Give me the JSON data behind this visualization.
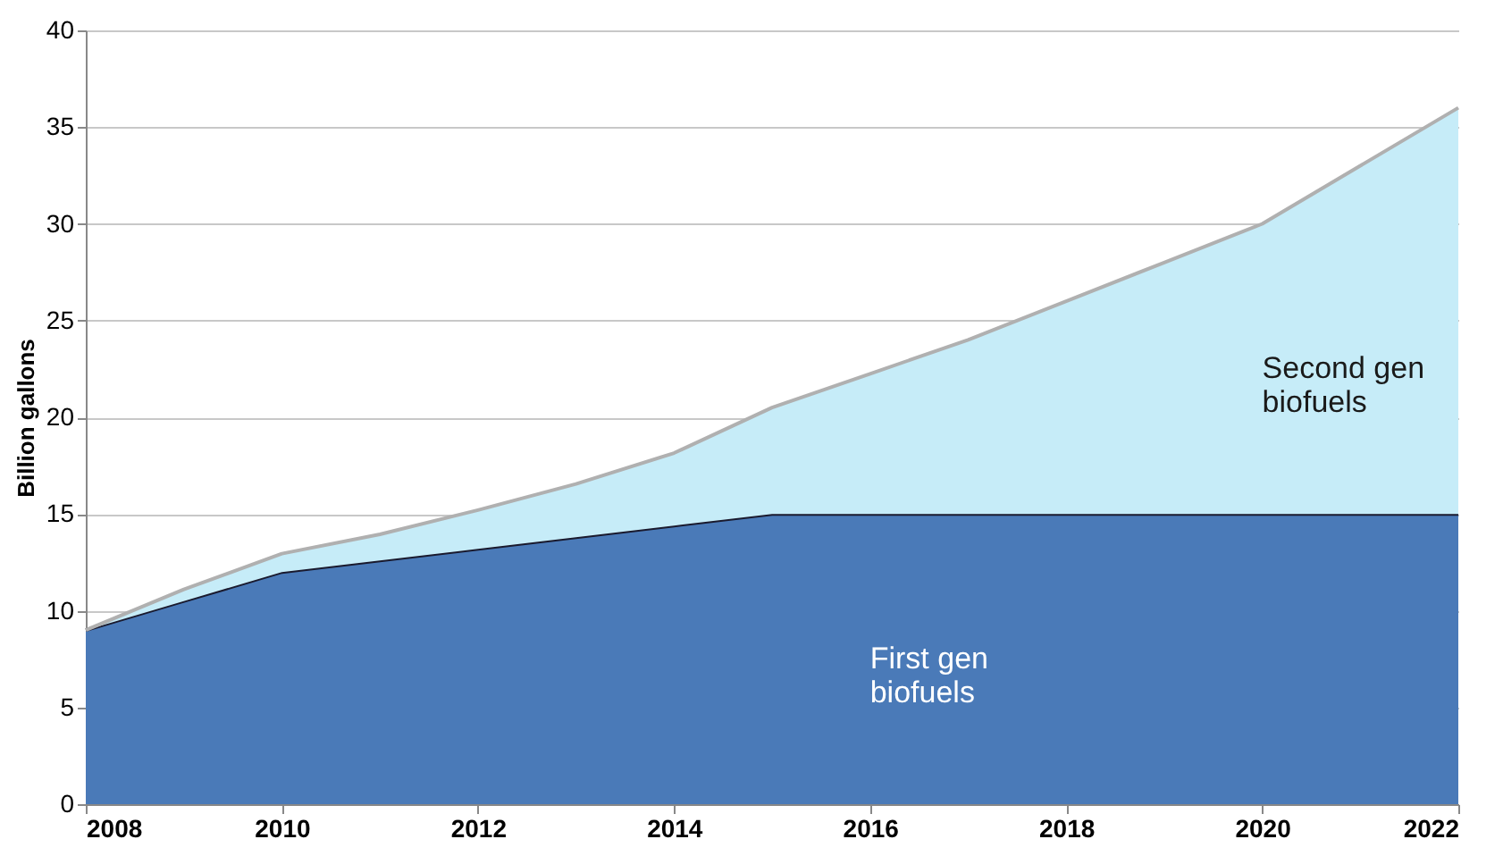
{
  "chart_data": {
    "type": "area",
    "ylabel": "Billion gallons",
    "x": [
      2008,
      2009,
      2010,
      2011,
      2012,
      2013,
      2014,
      2015,
      2016,
      2017,
      2018,
      2019,
      2020,
      2021,
      2022
    ],
    "stacked": true,
    "series": [
      {
        "name": "First gen biofuels",
        "color": "#4a7ab8",
        "values": [
          9,
          10.5,
          12,
          12.6,
          13.2,
          13.8,
          14.4,
          15,
          15,
          15,
          15,
          15,
          15,
          15,
          15
        ]
      },
      {
        "name": "Second gen biofuels",
        "color": "#c6ecf8",
        "values": [
          0,
          0.6,
          0.95,
          1.35,
          2.0,
          2.75,
          3.75,
          5.5,
          7.25,
          9,
          11,
          13,
          15,
          18,
          21
        ]
      }
    ],
    "xlim": [
      2008,
      2022
    ],
    "xticks": [
      2008,
      2010,
      2012,
      2014,
      2016,
      2018,
      2020,
      2022
    ],
    "ylim": [
      0,
      40
    ],
    "yticks": [
      0,
      5,
      10,
      15,
      20,
      25,
      30,
      35,
      40
    ],
    "grid": "y"
  }
}
